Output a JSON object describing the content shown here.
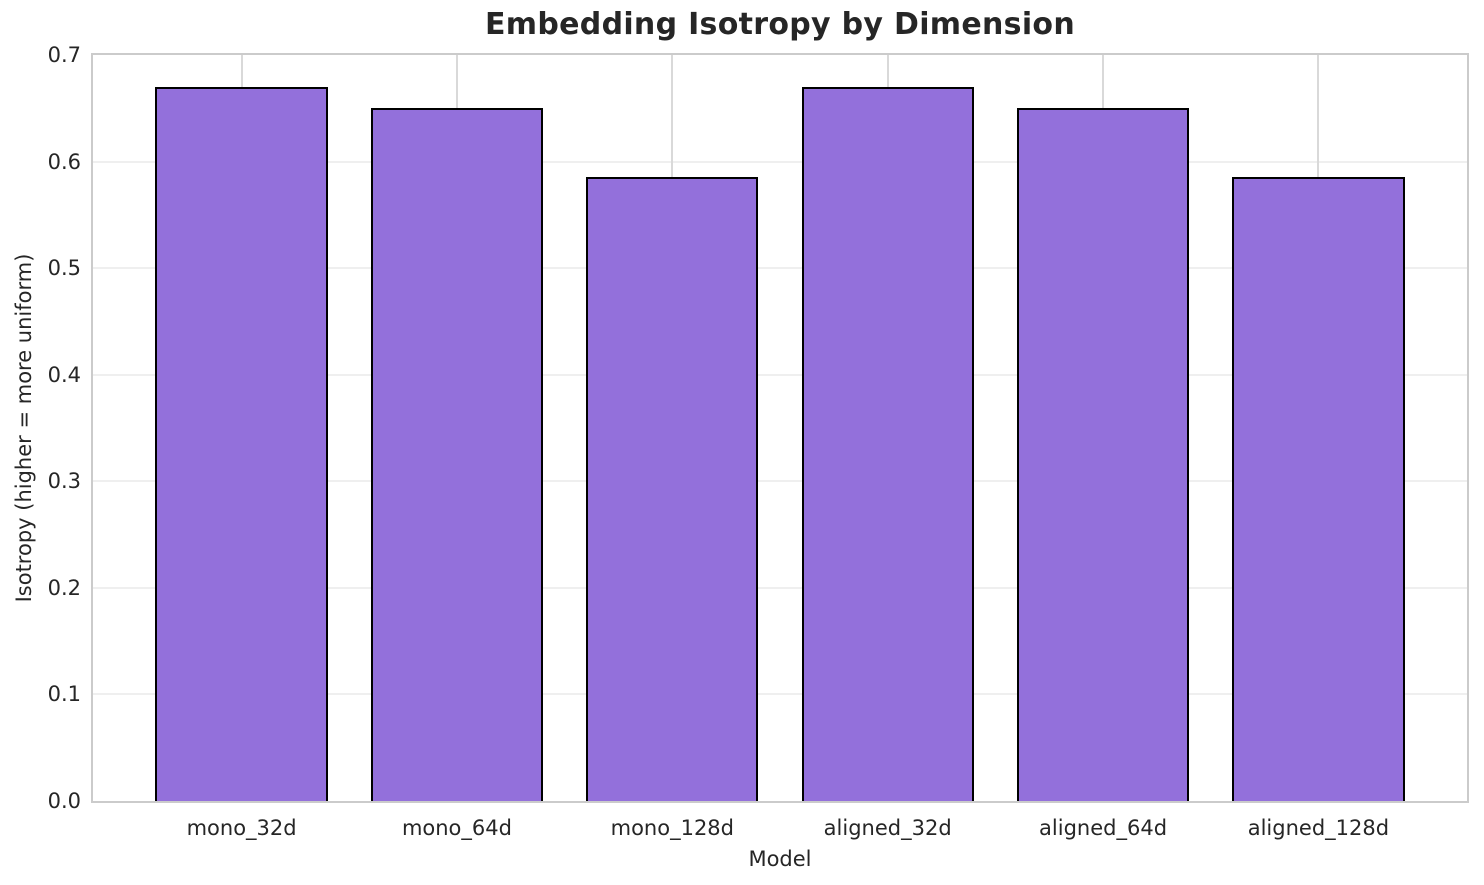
{
  "chart_data": {
    "type": "bar",
    "title": "Embedding Isotropy by Dimension",
    "xlabel": "Model",
    "ylabel": "Isotropy (higher = more uniform)",
    "categories": [
      "mono_32d",
      "mono_64d",
      "mono_128d",
      "aligned_32d",
      "aligned_64d",
      "aligned_128d"
    ],
    "values": [
      0.67,
      0.65,
      0.586,
      0.67,
      0.65,
      0.586
    ],
    "ylim": [
      0.0,
      0.7
    ],
    "yticklabels": [
      "0.0",
      "0.1",
      "0.2",
      "0.3",
      "0.4",
      "0.5",
      "0.6",
      "0.7"
    ],
    "grid": true,
    "legend": "none",
    "colors": {
      "bar_fill": "#9370DB",
      "bar_edge": "#000000",
      "grid_horizontal": "#efefef",
      "grid_vertical": "#d9d9d9",
      "spine": "#cbcbcb",
      "text": "#262626",
      "background": "#ffffff"
    }
  }
}
